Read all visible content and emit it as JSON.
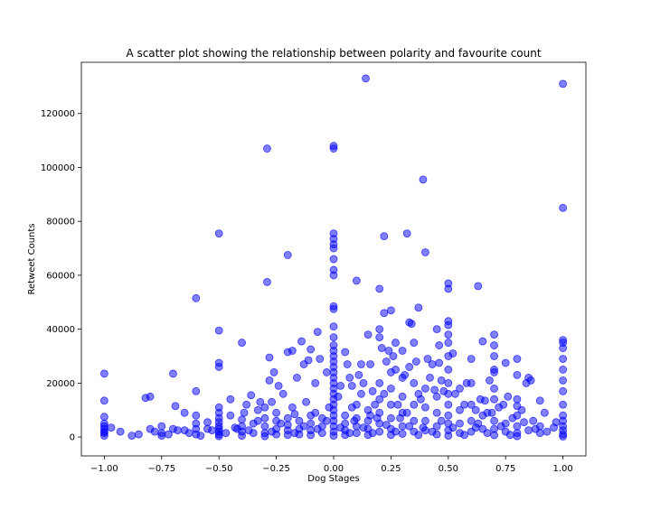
{
  "chart_data": {
    "type": "scatter",
    "title": "A scatter plot showing the relationship between polarity and favourite count",
    "xlabel": "Dog Stages",
    "ylabel": "Retweet Counts",
    "xlim": [
      -1.1,
      1.1
    ],
    "ylim": [
      -7000,
      139000
    ],
    "xticks": [
      -1.0,
      -0.75,
      -0.5,
      -0.25,
      0.0,
      0.25,
      0.5,
      0.75,
      1.0
    ],
    "xtick_labels": [
      "−1.00",
      "−0.75",
      "−0.50",
      "−0.25",
      "0.00",
      "0.25",
      "0.50",
      "0.75",
      "1.00"
    ],
    "yticks": [
      0,
      20000,
      40000,
      60000,
      80000,
      100000,
      120000
    ],
    "ytick_labels": [
      "0",
      "20000",
      "40000",
      "60000",
      "80000",
      "100000",
      "120000"
    ],
    "grid": false,
    "marker_color": "#0000ff",
    "marker_alpha": 0.5,
    "points": [
      [
        0.14,
        133000
      ],
      [
        1.0,
        131000
      ],
      [
        0.0,
        108000
      ],
      [
        0.0,
        107000
      ],
      [
        -0.29,
        107000
      ],
      [
        0.39,
        95500
      ],
      [
        1.0,
        85000
      ],
      [
        0.0,
        75500
      ],
      [
        -0.5,
        75500
      ],
      [
        0.32,
        75500
      ],
      [
        0.22,
        74500
      ],
      [
        0.0,
        73500
      ],
      [
        0.0,
        71500
      ],
      [
        0.0,
        70000
      ],
      [
        0.4,
        68500
      ],
      [
        -0.2,
        67500
      ],
      [
        0.0,
        66000
      ],
      [
        0.0,
        62000
      ],
      [
        0.0,
        60000
      ],
      [
        0.1,
        58000
      ],
      [
        -0.29,
        57500
      ],
      [
        0.5,
        57000
      ],
      [
        0.63,
        56000
      ],
      [
        0.5,
        55000
      ],
      [
        0.2,
        55000
      ],
      [
        -0.6,
        51500
      ],
      [
        0.0,
        48500
      ],
      [
        0.0,
        47500
      ],
      [
        0.37,
        48000
      ],
      [
        0.25,
        47000
      ],
      [
        0.22,
        46000
      ],
      [
        0.5,
        43000
      ],
      [
        0.33,
        42500
      ],
      [
        0.34,
        42000
      ],
      [
        0.5,
        41500
      ],
      [
        0.0,
        41000
      ],
      [
        -0.5,
        39500
      ],
      [
        0.2,
        40000
      ],
      [
        0.45,
        40000
      ],
      [
        -0.07,
        39000
      ],
      [
        0.7,
        38000
      ],
      [
        0.15,
        38000
      ],
      [
        0.5,
        38000
      ],
      [
        0.2,
        37000
      ],
      [
        0.0,
        37000
      ],
      [
        1.0,
        36000
      ],
      [
        0.65,
        35500
      ],
      [
        -0.4,
        35000
      ],
      [
        -0.14,
        35500
      ],
      [
        0.27,
        35000
      ],
      [
        0.35,
        35000
      ],
      [
        0.05,
        31500
      ],
      [
        -0.18,
        32000
      ],
      [
        -0.2,
        31500
      ],
      [
        0.3,
        32000
      ],
      [
        -0.1,
        32500
      ],
      [
        0.24,
        32000
      ],
      [
        0.6,
        29000
      ],
      [
        0.8,
        29000
      ],
      [
        -0.28,
        29500
      ],
      [
        -0.11,
        28500
      ],
      [
        -0.5,
        27500
      ],
      [
        -0.5,
        26000
      ],
      [
        0.12,
        27000
      ],
      [
        0.46,
        27500
      ],
      [
        -1.0,
        23500
      ],
      [
        -0.7,
        23500
      ],
      [
        0.86,
        21000
      ],
      [
        0.7,
        25000
      ],
      [
        0.85,
        22000
      ],
      [
        0.8,
        23000
      ],
      [
        0.75,
        27500
      ],
      [
        0.6,
        20000
      ],
      [
        -0.6,
        17000
      ],
      [
        -0.36,
        15500
      ],
      [
        -0.27,
        13000
      ],
      [
        -0.45,
        14000
      ],
      [
        0.08,
        19000
      ],
      [
        0.44,
        17500
      ],
      [
        0.55,
        18000
      ],
      [
        0.64,
        14000
      ],
      [
        0.66,
        13500
      ],
      [
        0.9,
        13500
      ],
      [
        0.8,
        11500
      ],
      [
        0.8,
        14000
      ],
      [
        -0.8,
        15000
      ],
      [
        -0.82,
        14500
      ],
      [
        -1.0,
        13500
      ],
      [
        -0.3,
        11000
      ],
      [
        -0.33,
        10000
      ],
      [
        -0.08,
        9000
      ],
      [
        -0.17,
        8500
      ],
      [
        0.16,
        8000
      ],
      [
        -0.65,
        9000
      ],
      [
        -0.6,
        8000
      ],
      [
        -1.0,
        7500
      ],
      [
        -0.69,
        11500
      ],
      [
        -0.39,
        9000
      ],
      [
        0.69,
        9000
      ],
      [
        0.97,
        5500
      ],
      [
        -1.0,
        5000
      ],
      [
        -1.0,
        4000
      ],
      [
        -1.0,
        3000
      ],
      [
        -1.0,
        2000
      ],
      [
        -1.0,
        1500
      ],
      [
        -1.0,
        500
      ],
      [
        -0.75,
        4000
      ],
      [
        -0.75,
        1500
      ],
      [
        -0.75,
        500
      ],
      [
        -0.7,
        3000
      ],
      [
        -0.72,
        1000
      ],
      [
        -0.6,
        5000
      ],
      [
        -0.6,
        3000
      ],
      [
        -0.6,
        1000
      ],
      [
        -0.55,
        5500
      ],
      [
        -0.55,
        3000
      ],
      [
        -0.58,
        500
      ],
      [
        -0.65,
        2500
      ],
      [
        -0.8,
        3000
      ],
      [
        -0.68,
        2500
      ],
      [
        -0.5,
        11000
      ],
      [
        -0.5,
        9000
      ],
      [
        -0.5,
        7000
      ],
      [
        -0.5,
        5500
      ],
      [
        -0.5,
        4000
      ],
      [
        -0.5,
        3000
      ],
      [
        -0.5,
        2000
      ],
      [
        -0.5,
        1000
      ],
      [
        -0.5,
        300
      ],
      [
        -0.4,
        6500
      ],
      [
        -0.4,
        4000
      ],
      [
        -0.4,
        2000
      ],
      [
        -0.4,
        500
      ],
      [
        -0.42,
        3000
      ],
      [
        -0.35,
        5000
      ],
      [
        -0.35,
        1500
      ],
      [
        -0.3,
        7000
      ],
      [
        -0.3,
        4000
      ],
      [
        -0.3,
        1500
      ],
      [
        -0.3,
        300
      ],
      [
        -0.25,
        9000
      ],
      [
        -0.25,
        6000
      ],
      [
        -0.25,
        3000
      ],
      [
        -0.25,
        1000
      ],
      [
        -0.2,
        7000
      ],
      [
        -0.2,
        4500
      ],
      [
        -0.2,
        2500
      ],
      [
        -0.2,
        800
      ],
      [
        -0.15,
        6000
      ],
      [
        -0.15,
        3000
      ],
      [
        -0.15,
        1000
      ],
      [
        -0.1,
        8000
      ],
      [
        -0.1,
        5000
      ],
      [
        -0.1,
        2500
      ],
      [
        -0.1,
        700
      ],
      [
        -0.05,
        7000
      ],
      [
        -0.05,
        4000
      ],
      [
        -0.05,
        1500
      ],
      [
        0.0,
        34000
      ],
      [
        0.0,
        32000
      ],
      [
        0.0,
        30000
      ],
      [
        0.0,
        28000
      ],
      [
        0.0,
        26000
      ],
      [
        0.0,
        24000
      ],
      [
        0.0,
        22000
      ],
      [
        0.0,
        20000
      ],
      [
        0.0,
        18000
      ],
      [
        0.0,
        16000
      ],
      [
        0.0,
        14000
      ],
      [
        0.0,
        12000
      ],
      [
        0.0,
        10000
      ],
      [
        0.0,
        8000
      ],
      [
        0.0,
        6000
      ],
      [
        0.0,
        4000
      ],
      [
        0.0,
        2000
      ],
      [
        0.0,
        500
      ],
      [
        0.05,
        8000
      ],
      [
        0.05,
        5000
      ],
      [
        0.05,
        2500
      ],
      [
        0.05,
        800
      ],
      [
        0.1,
        12000
      ],
      [
        0.1,
        7000
      ],
      [
        0.1,
        4000
      ],
      [
        0.1,
        1500
      ],
      [
        0.15,
        10000
      ],
      [
        0.15,
        6000
      ],
      [
        0.15,
        3000
      ],
      [
        0.15,
        800
      ],
      [
        0.2,
        20000
      ],
      [
        0.2,
        14000
      ],
      [
        0.2,
        9000
      ],
      [
        0.2,
        5000
      ],
      [
        0.2,
        2000
      ],
      [
        0.25,
        24000
      ],
      [
        0.25,
        18000
      ],
      [
        0.25,
        12000
      ],
      [
        0.25,
        7000
      ],
      [
        0.25,
        3000
      ],
      [
        0.25,
        800
      ],
      [
        0.3,
        22000
      ],
      [
        0.3,
        15000
      ],
      [
        0.3,
        9000
      ],
      [
        0.3,
        4000
      ],
      [
        0.3,
        1200
      ],
      [
        0.35,
        20000
      ],
      [
        0.35,
        12000
      ],
      [
        0.35,
        6000
      ],
      [
        0.35,
        2000
      ],
      [
        0.4,
        18000
      ],
      [
        0.4,
        11000
      ],
      [
        0.4,
        6000
      ],
      [
        0.4,
        2500
      ],
      [
        0.45,
        15000
      ],
      [
        0.45,
        9000
      ],
      [
        0.45,
        4000
      ],
      [
        0.45,
        1000
      ],
      [
        0.5,
        35000
      ],
      [
        0.5,
        30000
      ],
      [
        0.5,
        25000
      ],
      [
        0.5,
        20000
      ],
      [
        0.5,
        16000
      ],
      [
        0.5,
        12000
      ],
      [
        0.5,
        8000
      ],
      [
        0.5,
        5000
      ],
      [
        0.5,
        2500
      ],
      [
        0.5,
        500
      ],
      [
        0.55,
        10000
      ],
      [
        0.55,
        5000
      ],
      [
        0.55,
        1500
      ],
      [
        0.6,
        12000
      ],
      [
        0.6,
        6000
      ],
      [
        0.6,
        2000
      ],
      [
        0.65,
        8000
      ],
      [
        0.65,
        3000
      ],
      [
        0.7,
        34000
      ],
      [
        0.7,
        30000
      ],
      [
        0.7,
        24000
      ],
      [
        0.7,
        18000
      ],
      [
        0.7,
        14000
      ],
      [
        0.7,
        6000
      ],
      [
        0.7,
        3000
      ],
      [
        0.7,
        700
      ],
      [
        0.75,
        5000
      ],
      [
        0.75,
        2000
      ],
      [
        0.8,
        8000
      ],
      [
        0.8,
        4000
      ],
      [
        0.8,
        1500
      ],
      [
        0.8,
        300
      ],
      [
        0.85,
        2500
      ],
      [
        0.9,
        4000
      ],
      [
        0.9,
        1500
      ],
      [
        1.0,
        35000
      ],
      [
        1.0,
        33000
      ],
      [
        1.0,
        29000
      ],
      [
        1.0,
        25000
      ],
      [
        1.0,
        21000
      ],
      [
        1.0,
        17000
      ],
      [
        1.0,
        12000
      ],
      [
        1.0,
        8000
      ],
      [
        1.0,
        6000
      ],
      [
        1.0,
        4000
      ],
      [
        1.0,
        2500
      ],
      [
        1.0,
        1000
      ],
      [
        1.0,
        200
      ],
      [
        0.02,
        15000
      ],
      [
        -0.02,
        11000
      ],
      [
        0.08,
        11000
      ],
      [
        0.12,
        16000
      ],
      [
        0.18,
        12000
      ],
      [
        0.22,
        16000
      ],
      [
        0.28,
        12000
      ],
      [
        0.32,
        9000
      ],
      [
        0.38,
        14000
      ],
      [
        0.42,
        22000
      ],
      [
        0.48,
        17000
      ],
      [
        -0.12,
        13000
      ],
      [
        -0.18,
        11000
      ],
      [
        -0.22,
        16000
      ],
      [
        -0.28,
        21000
      ],
      [
        -0.32,
        13000
      ],
      [
        -0.08,
        20000
      ],
      [
        -0.03,
        24000
      ],
      [
        0.03,
        19000
      ],
      [
        0.07,
        22000
      ],
      [
        0.13,
        20000
      ],
      [
        0.17,
        17000
      ],
      [
        0.23,
        28000
      ],
      [
        0.27,
        25000
      ],
      [
        0.33,
        26000
      ],
      [
        0.37,
        16000
      ],
      [
        0.43,
        27000
      ],
      [
        0.47,
        21000
      ],
      [
        0.53,
        16000
      ],
      [
        0.57,
        12000
      ],
      [
        0.62,
        10000
      ],
      [
        0.68,
        21000
      ],
      [
        0.72,
        11000
      ],
      [
        0.78,
        7000
      ],
      [
        0.83,
        5500
      ],
      [
        0.88,
        3000
      ],
      [
        0.93,
        2000
      ],
      [
        -0.93,
        2000
      ],
      [
        -0.85,
        1000
      ],
      [
        -0.45,
        8000
      ],
      [
        -0.38,
        12000
      ],
      [
        -0.26,
        24000
      ],
      [
        -0.24,
        19000
      ],
      [
        -0.16,
        22000
      ],
      [
        -0.13,
        27000
      ],
      [
        -0.06,
        29000
      ],
      [
        0.06,
        27000
      ],
      [
        0.11,
        23000
      ],
      [
        0.16,
        27000
      ],
      [
        0.21,
        33000
      ],
      [
        0.26,
        30000
      ],
      [
        0.31,
        23000
      ],
      [
        0.36,
        28000
      ],
      [
        0.41,
        29000
      ],
      [
        0.46,
        34000
      ],
      [
        0.52,
        31000
      ],
      [
        0.58,
        20000
      ],
      [
        0.62,
        3500
      ],
      [
        0.67,
        1500
      ],
      [
        0.73,
        4000
      ],
      [
        0.77,
        800
      ],
      [
        0.82,
        10000
      ],
      [
        0.87,
        6000
      ],
      [
        0.92,
        9000
      ],
      [
        0.96,
        3500
      ],
      [
        -0.97,
        3500
      ],
      [
        -0.88,
        500
      ],
      [
        -0.78,
        2000
      ],
      [
        -0.63,
        1500
      ],
      [
        -0.53,
        2500
      ],
      [
        -0.47,
        1500
      ],
      [
        -0.43,
        3500
      ],
      [
        -0.37,
        2500
      ],
      [
        -0.33,
        6000
      ],
      [
        -0.27,
        2000
      ],
      [
        -0.23,
        5000
      ],
      [
        -0.17,
        1500
      ],
      [
        -0.13,
        4000
      ],
      [
        -0.07,
        3000
      ],
      [
        -0.03,
        6000
      ],
      [
        0.03,
        3500
      ],
      [
        0.07,
        1500
      ],
      [
        0.09,
        6000
      ],
      [
        0.13,
        3500
      ],
      [
        0.17,
        1500
      ],
      [
        0.19,
        7000
      ],
      [
        0.23,
        4500
      ],
      [
        0.27,
        2000
      ],
      [
        0.29,
        7000
      ],
      [
        0.33,
        4000
      ],
      [
        0.37,
        800
      ],
      [
        0.39,
        3500
      ],
      [
        0.43,
        2000
      ],
      [
        0.47,
        6000
      ],
      [
        0.52,
        3500
      ],
      [
        0.57,
        800
      ],
      [
        0.63,
        5000
      ],
      [
        0.67,
        9000
      ],
      [
        0.74,
        12000
      ],
      [
        0.76,
        15000
      ],
      [
        0.84,
        20000
      ]
    ]
  }
}
